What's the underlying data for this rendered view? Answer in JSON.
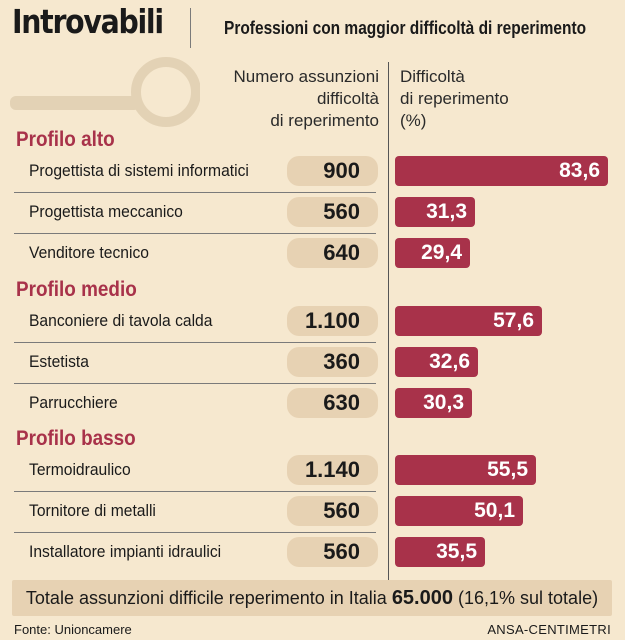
{
  "title": "Introvabili",
  "subtitle": "Professioni con maggior difficoltà di reperimento",
  "column_a_header": [
    "Numero assunzioni",
    "difficoltà",
    "di reperimento"
  ],
  "column_b_header": [
    "Difficoltà",
    "di reperimento",
    "(%)"
  ],
  "icon": "magnifying-glass-icon",
  "colors": {
    "bar": "#a8324a",
    "pill": "#e7d2b3",
    "background": "#f6e8cf"
  },
  "chart_data": {
    "type": "bar",
    "orientation": "horizontal",
    "xlim": [
      0,
      100
    ],
    "groups": [
      {
        "name": "Profilo alto",
        "rows": [
          {
            "label": "Progettista di sistemi informatici",
            "hires": "900",
            "value": 83.6,
            "value_label": "83,6"
          },
          {
            "label": "Progettista meccanico",
            "hires": "560",
            "value": 31.3,
            "value_label": "31,3"
          },
          {
            "label": "Venditore tecnico",
            "hires": "640",
            "value": 29.4,
            "value_label": "29,4"
          }
        ]
      },
      {
        "name": "Profilo medio",
        "rows": [
          {
            "label": "Banconiere di tavola calda",
            "hires": "1.100",
            "value": 57.6,
            "value_label": "57,6"
          },
          {
            "label": "Estetista",
            "hires": "360",
            "value": 32.6,
            "value_label": "32,6"
          },
          {
            "label": "Parrucchiere",
            "hires": "630",
            "value": 30.3,
            "value_label": "30,3"
          }
        ]
      },
      {
        "name": "Profilo basso",
        "rows": [
          {
            "label": "Termoidraulico",
            "hires": "1.140",
            "value": 55.5,
            "value_label": "55,5"
          },
          {
            "label": "Tornitore di metalli",
            "hires": "560",
            "value": 50.1,
            "value_label": "50,1"
          },
          {
            "label": "Installatore impianti idraulici",
            "hires": "560",
            "value": 35.5,
            "value_label": "35,5"
          }
        ]
      }
    ]
  },
  "total": {
    "prefix": "Totale assunzioni difficile reperimento in Italia",
    "value": "65.000",
    "suffix": "(16,1% sul totale)"
  },
  "source": "Fonte: Unioncamere",
  "credit": "ANSA-CENTIMETRI"
}
